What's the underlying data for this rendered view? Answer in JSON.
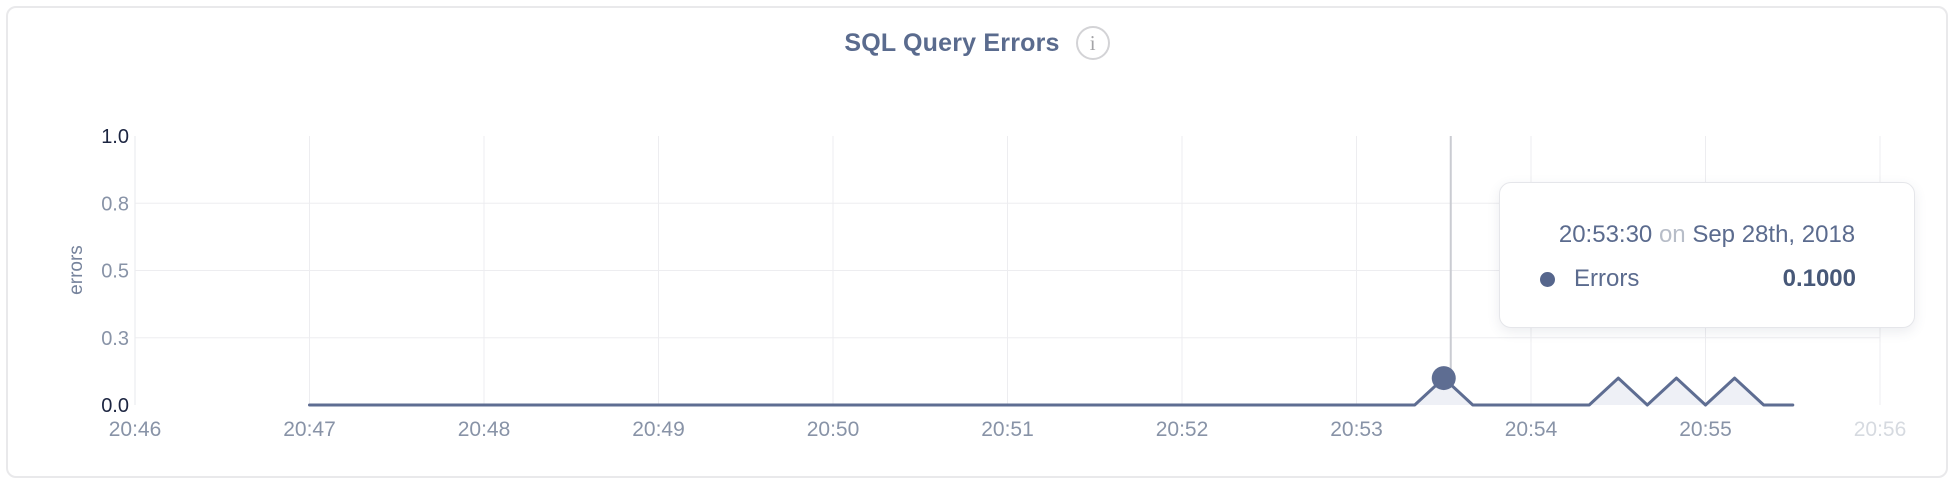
{
  "title": "SQL Query Errors",
  "info_icon": "i",
  "colors": {
    "accent": "#5e6d92",
    "area_fill": "#eef0f6",
    "grid": "#ededf0",
    "axis_line": "#e7e8ec",
    "crosshair": "#caccd2",
    "tick": "#8893a7",
    "tick_dark": "#1c2541",
    "tick_faded": "#d6dae0",
    "axis_title": "#76839c",
    "title_color": "#5a6b8e"
  },
  "chart_data": {
    "type": "line",
    "title": "SQL Query Errors",
    "xlabel": "",
    "ylabel": "errors",
    "ylim": [
      0,
      1
    ],
    "grid": true,
    "x_range": [
      "20:46:00",
      "20:56:00"
    ],
    "y_ticks": [
      {
        "label": "0.0",
        "value": 0,
        "dark": true
      },
      {
        "label": "0.3",
        "value": 0.25,
        "dark": false
      },
      {
        "label": "0.5",
        "value": 0.5,
        "dark": false
      },
      {
        "label": "0.8",
        "value": 0.75,
        "dark": false
      },
      {
        "label": "1.0",
        "value": 1,
        "dark": true
      }
    ],
    "x_ticks": [
      {
        "label": "20:46",
        "faded": false
      },
      {
        "label": "20:47",
        "faded": false
      },
      {
        "label": "20:48",
        "faded": false
      },
      {
        "label": "20:49",
        "faded": false
      },
      {
        "label": "20:50",
        "faded": false
      },
      {
        "label": "20:51",
        "faded": false
      },
      {
        "label": "20:52",
        "faded": false
      },
      {
        "label": "20:53",
        "faded": false
      },
      {
        "label": "20:54",
        "faded": false
      },
      {
        "label": "20:55",
        "faded": false
      },
      {
        "label": "20:56",
        "faded": true
      }
    ],
    "series": [
      {
        "name": "Errors",
        "color": "#5e6d92",
        "points": [
          [
            "20:47:00",
            0
          ],
          [
            "20:47:10",
            0
          ],
          [
            "20:47:20",
            0
          ],
          [
            "20:47:30",
            0
          ],
          [
            "20:47:40",
            0
          ],
          [
            "20:47:50",
            0
          ],
          [
            "20:48:00",
            0
          ],
          [
            "20:48:10",
            0
          ],
          [
            "20:48:20",
            0
          ],
          [
            "20:48:30",
            0
          ],
          [
            "20:48:40",
            0
          ],
          [
            "20:48:50",
            0
          ],
          [
            "20:49:00",
            0
          ],
          [
            "20:49:10",
            0
          ],
          [
            "20:49:20",
            0
          ],
          [
            "20:49:30",
            0
          ],
          [
            "20:49:40",
            0
          ],
          [
            "20:49:50",
            0
          ],
          [
            "20:50:00",
            0
          ],
          [
            "20:50:10",
            0
          ],
          [
            "20:50:20",
            0
          ],
          [
            "20:50:30",
            0
          ],
          [
            "20:50:40",
            0
          ],
          [
            "20:50:50",
            0
          ],
          [
            "20:51:00",
            0
          ],
          [
            "20:51:10",
            0
          ],
          [
            "20:51:20",
            0
          ],
          [
            "20:51:30",
            0
          ],
          [
            "20:51:40",
            0
          ],
          [
            "20:51:50",
            0
          ],
          [
            "20:52:00",
            0
          ],
          [
            "20:52:10",
            0
          ],
          [
            "20:52:20",
            0
          ],
          [
            "20:52:30",
            0
          ],
          [
            "20:52:40",
            0
          ],
          [
            "20:52:50",
            0
          ],
          [
            "20:53:00",
            0
          ],
          [
            "20:53:10",
            0
          ],
          [
            "20:53:20",
            0
          ],
          [
            "20:53:30",
            0.1
          ],
          [
            "20:53:40",
            0
          ],
          [
            "20:53:50",
            0
          ],
          [
            "20:54:00",
            0
          ],
          [
            "20:54:10",
            0
          ],
          [
            "20:54:20",
            0
          ],
          [
            "20:54:30",
            0.1
          ],
          [
            "20:54:40",
            0
          ],
          [
            "20:54:50",
            0.1
          ],
          [
            "20:55:00",
            0
          ],
          [
            "20:55:10",
            0.1
          ],
          [
            "20:55:20",
            0
          ],
          [
            "20:55:30",
            0
          ]
        ]
      }
    ]
  },
  "hover": {
    "time": "20:53:30",
    "value": 0.1
  },
  "tooltip": {
    "time": "20:53:30",
    "joiner": "on",
    "date": "Sep 28th, 2018",
    "series_label": "Errors",
    "value": "0.1000"
  }
}
